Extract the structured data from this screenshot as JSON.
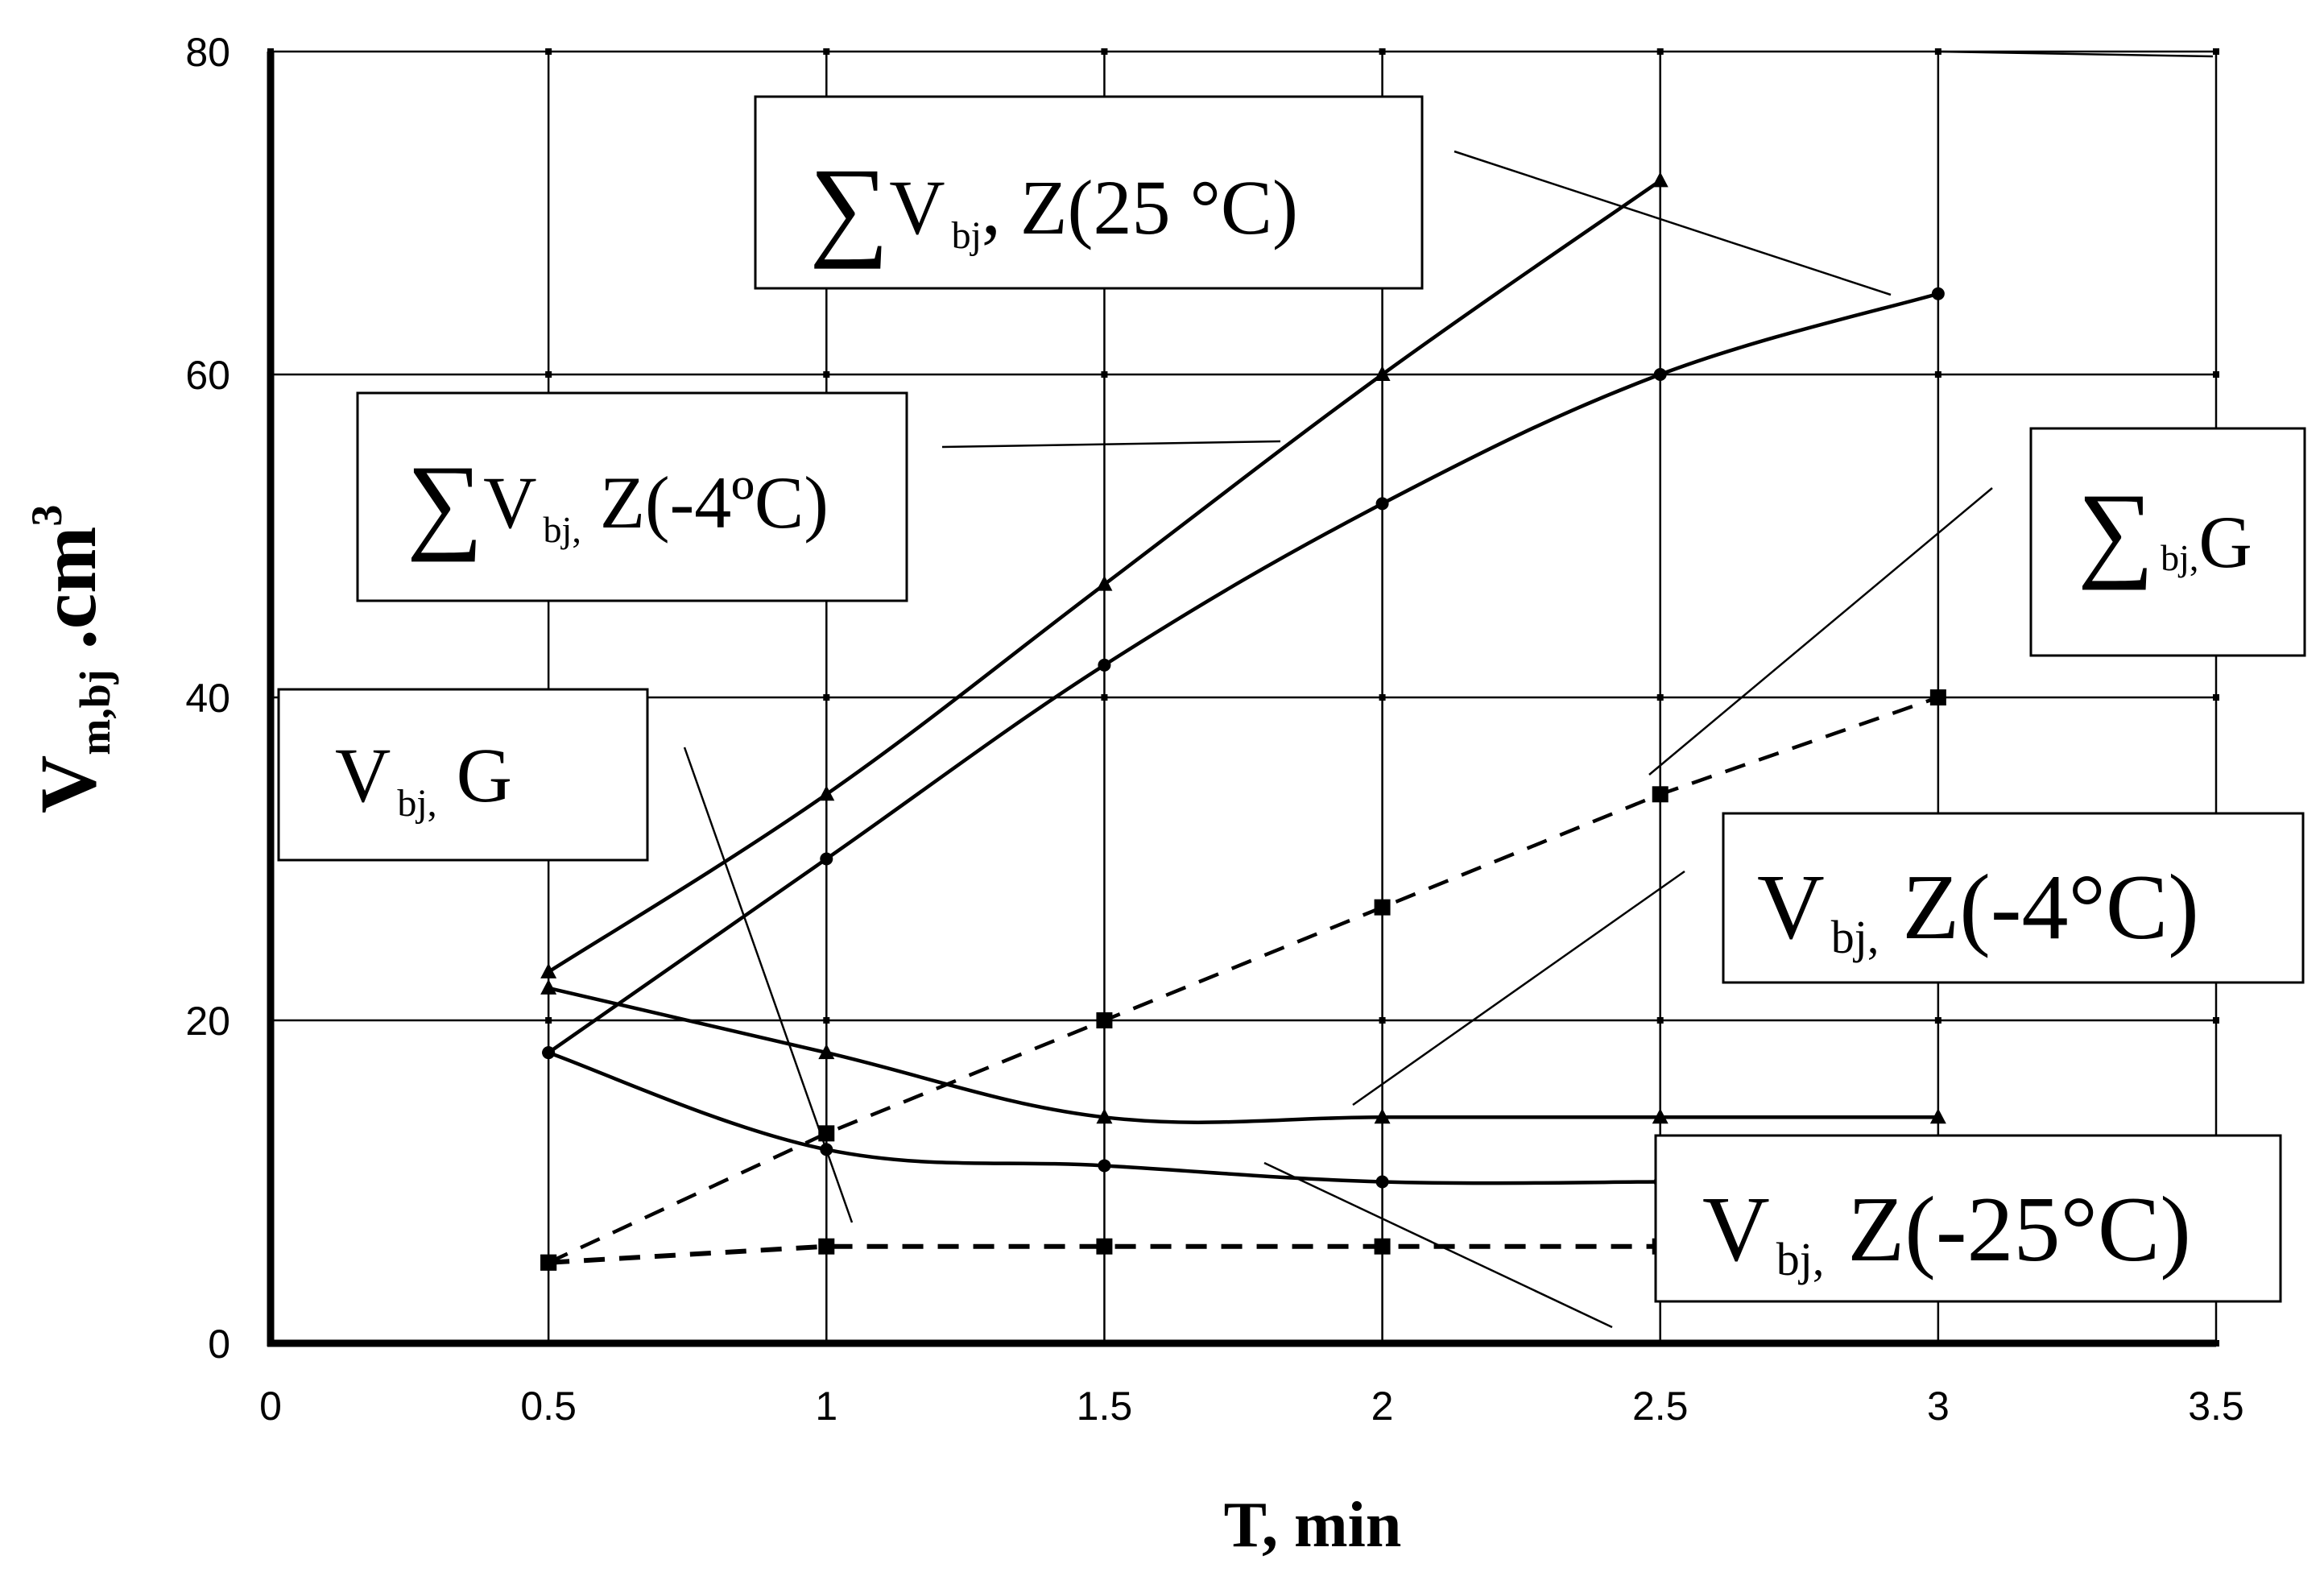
{
  "chart_data": {
    "type": "line",
    "xlabel": "T, min",
    "ylabel": {
      "main": "V",
      "sub": "m,bj",
      "rest": " .cm",
      "sup": "3"
    },
    "xlim": [
      0,
      3.5
    ],
    "ylim": [
      0,
      80
    ],
    "x_ticks": [
      "0",
      "0.5",
      "1",
      "1.5",
      "2",
      "2.5",
      "3",
      "3.5"
    ],
    "y_ticks": [
      "0",
      "20",
      "40",
      "60",
      "80"
    ],
    "grid": true,
    "series": [
      {
        "id": "sum-z-25",
        "marker": "triangle",
        "dash": "solid",
        "x": [
          0.5,
          1,
          1.5,
          2,
          2.5
        ],
        "y": [
          23,
          34,
          47,
          60,
          72
        ]
      },
      {
        "id": "sum-z-neg4",
        "marker": "circle",
        "dash": "solid",
        "x": [
          0.5,
          1,
          1.5,
          2,
          2.5,
          3
        ],
        "y": [
          18,
          30,
          42,
          52,
          60,
          65
        ]
      },
      {
        "id": "sum-g",
        "marker": "square",
        "dash": "dashed",
        "x": [
          0.5,
          1,
          1.5,
          2,
          2.5,
          3
        ],
        "y": [
          5,
          13,
          20,
          27,
          34,
          40
        ]
      },
      {
        "id": "z-neg4",
        "marker": "triangle",
        "dash": "solid",
        "x": [
          0.5,
          1,
          1.5,
          2,
          2.5,
          3
        ],
        "y": [
          22,
          18,
          14,
          14,
          14,
          14
        ]
      },
      {
        "id": "z-neg25",
        "marker": "circle",
        "dash": "solid",
        "x": [
          0.5,
          1,
          1.5,
          2,
          2.5
        ],
        "y": [
          18,
          12,
          11,
          10,
          10
        ]
      },
      {
        "id": "g",
        "marker": "square",
        "dash": "dashed",
        "x": [
          0.5,
          1,
          1.5,
          2,
          2.5
        ],
        "y": [
          5,
          6,
          6,
          6,
          6
        ]
      }
    ],
    "annotations": [
      {
        "id": "sum-z-25",
        "sigma": "∑",
        "main": "V",
        "sub": "bj",
        "tail": ", Z(25 °C)"
      },
      {
        "id": "sum-z-neg4",
        "sigma": "∑",
        "main": "V",
        "sub": "bj,",
        "tail": " Z(-4ºC)"
      },
      {
        "id": "sum-g",
        "sigma": "∑",
        "main": "",
        "sub": "bj,",
        "tail": "G"
      },
      {
        "id": "g",
        "sigma": "",
        "main": "V",
        "sub": "bj,",
        "tail": "  G"
      },
      {
        "id": "z-neg4",
        "sigma": "",
        "main": "V",
        "sub": "bj,",
        "tail": " Z(-4°C)"
      },
      {
        "id": "z-neg25",
        "sigma": "",
        "main": "V",
        "sub": "bj,",
        "tail": " Z(-25°C)"
      }
    ]
  }
}
